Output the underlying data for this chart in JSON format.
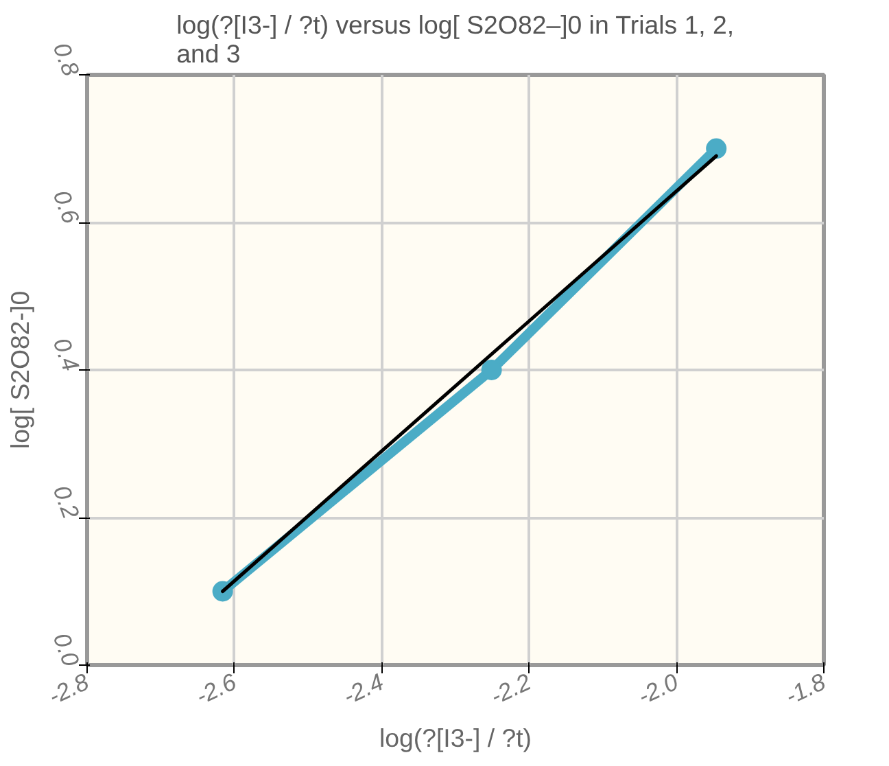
{
  "chart_data": {
    "type": "line",
    "title": "log(?[I3-] / ?t) versus log[ S2O82–]0 in Trials 1, 2, and 3",
    "xlabel": "log(?[I3-] / ?t)",
    "ylabel": "log[ S2O82-]0",
    "series": [
      {
        "color": "#4bacc6",
        "x": [
          -2.616,
          -2.251,
          -1.946
        ],
        "values": [
          0.1,
          0.4,
          0.7
        ],
        "marker": "circle"
      },
      {
        "color": "#000000",
        "x": [
          -2.616,
          -1.946
        ],
        "values": [
          0.1,
          0.69
        ],
        "marker": "none"
      }
    ],
    "xlim": [
      -2.8,
      -1.8
    ],
    "xticks": [
      -2.8,
      -2.6,
      -2.4,
      -2.2,
      {
        "value": -2,
        "label": "-2.0"
      },
      -1.8
    ],
    "ylim": [
      0,
      0.8
    ],
    "yticks": [
      {
        "value": 0,
        "label": "0.0"
      },
      0.2,
      0.4,
      0.6,
      0.8
    ],
    "grid": true
  }
}
